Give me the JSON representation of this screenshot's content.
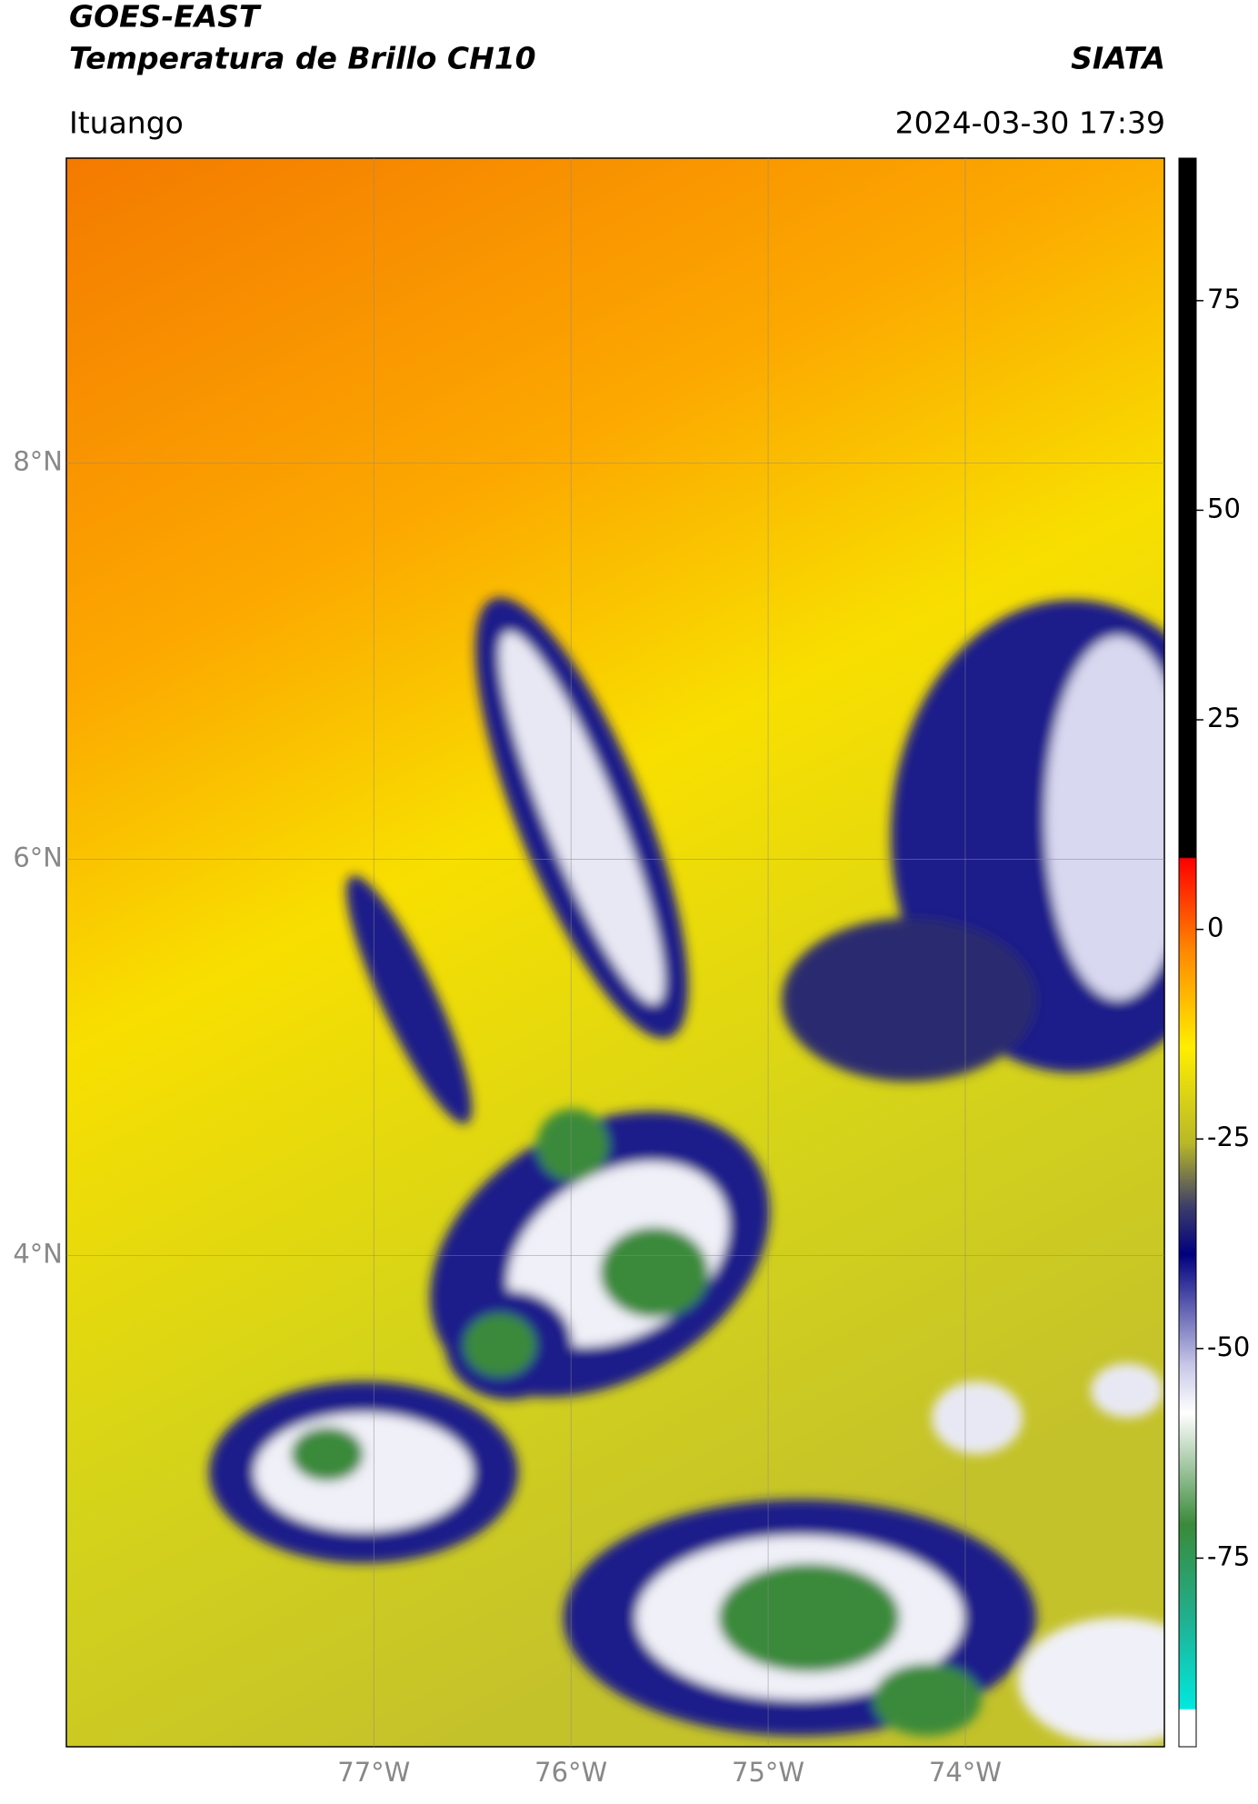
{
  "header": {
    "title": "GOES-EAST",
    "subtitle": "Temperatura de Brillo CH10",
    "source": "SIATA",
    "place": "Ituango",
    "datetime": "2024-03-30 17:39"
  },
  "map": {
    "xlim": [
      -78.56,
      -72.99
    ],
    "ylim": [
      1.52,
      9.54
    ],
    "xticks": [
      {
        "value": -77,
        "label": "77°W"
      },
      {
        "value": -76,
        "label": "76°W"
      },
      {
        "value": -75,
        "label": "75°W"
      },
      {
        "value": -74,
        "label": "74°W"
      }
    ],
    "yticks": [
      {
        "value": 8,
        "label": "8°N"
      },
      {
        "value": 6,
        "label": "6°N"
      },
      {
        "value": 4,
        "label": "4°N"
      }
    ],
    "grid": true
  },
  "colorbar": {
    "lim": [
      -97.5,
      92
    ],
    "ticks": [
      75,
      50,
      25,
      0,
      -25,
      -50,
      -75
    ]
  }
}
